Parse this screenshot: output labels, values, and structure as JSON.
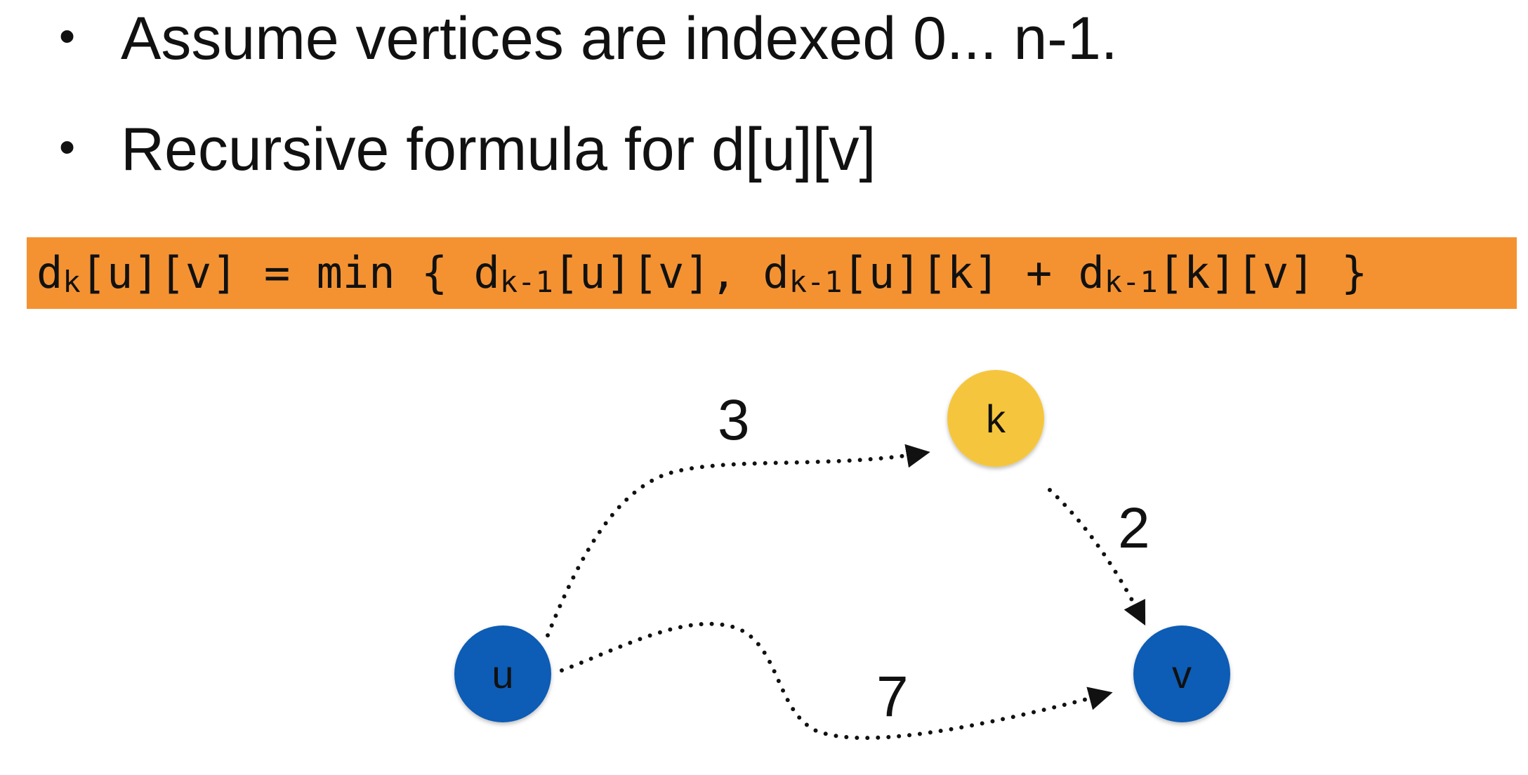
{
  "bullets": [
    {
      "text": "Assume vertices are indexed 0... n-1."
    },
    {
      "text": "Recursive formula for d[u][v]"
    }
  ],
  "formula": {
    "d1": "d",
    "s1": "k",
    "p1": "[u][v] = min { ",
    "d2": "d",
    "s2": "k-1",
    "p2": "[u][v], ",
    "d3": "d",
    "s3": "k-1",
    "p3": "[u][k] + ",
    "d4": "d",
    "s4": "k-1",
    "p4": "[k][v] }"
  },
  "colors": {
    "formula_bg": "#f49232",
    "node_blue": "#0d5bb5",
    "node_yellow": "#f5c63c"
  },
  "graph": {
    "nodes": {
      "u": {
        "label": "u"
      },
      "k": {
        "label": "k"
      },
      "v": {
        "label": "v"
      }
    },
    "edges": {
      "u_k": {
        "weight": "3"
      },
      "k_v": {
        "weight": "2"
      },
      "u_v": {
        "weight": "7"
      }
    }
  }
}
